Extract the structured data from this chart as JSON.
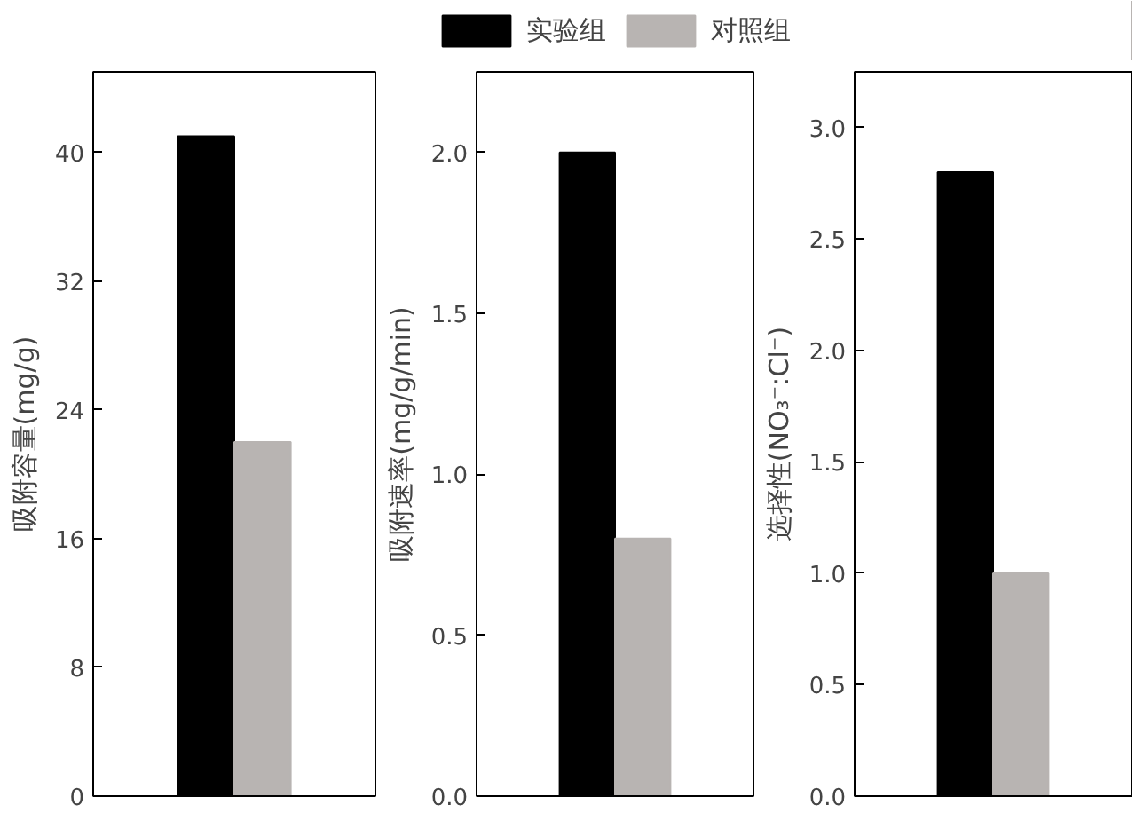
{
  "chart_data": [
    {
      "type": "bar",
      "ylabel": "吸附容量(mg/g)",
      "categories": [
        null
      ],
      "series": [
        {
          "color": "#000000",
          "values": [
            41
          ]
        },
        {
          "color": "#b8b4b2",
          "values": [
            22
          ]
        }
      ],
      "ylim": [
        0,
        45
      ],
      "yticks": [
        0,
        8,
        16,
        24,
        32,
        40
      ],
      "grid": false,
      "legend": false
    },
    {
      "type": "bar",
      "ylabel": "吸附速率(mg/g/min)",
      "categories": [
        null
      ],
      "series": [
        {
          "name": "实验组",
          "color": "#000000",
          "values": [
            2.0
          ]
        },
        {
          "name": "对照组",
          "color": "#b8b4b2",
          "values": [
            0.8
          ]
        }
      ],
      "ylim": [
        0,
        2.25
      ],
      "yticks": [
        {
          "value": 0,
          "label": "0.0"
        },
        {
          "value": 0.5,
          "label": "0.5"
        },
        {
          "value": 1,
          "label": "1.0"
        },
        {
          "value": 1.5,
          "label": "1.5"
        },
        {
          "value": 2,
          "label": "2.0"
        }
      ],
      "grid": false,
      "legend": "top"
    },
    {
      "type": "bar",
      "ylabel": "选择性(NO₃⁻:Cl⁻)",
      "categories": [
        null
      ],
      "series": [
        {
          "color": "#000000",
          "values": [
            2.8
          ]
        },
        {
          "color": "#b8b4b2",
          "values": [
            1.0
          ]
        }
      ],
      "ylim": [
        0,
        3.25
      ],
      "yticks": [
        {
          "value": 0,
          "label": "0.0"
        },
        {
          "value": 0.5,
          "label": "0.5"
        },
        {
          "value": 1,
          "label": "1.0"
        },
        {
          "value": 1.5,
          "label": "1.5"
        },
        {
          "value": 2,
          "label": "2.0"
        },
        {
          "value": 2.5,
          "label": "2.5"
        },
        {
          "value": 3,
          "label": "3.0"
        }
      ],
      "grid": false,
      "legend": false
    }
  ]
}
